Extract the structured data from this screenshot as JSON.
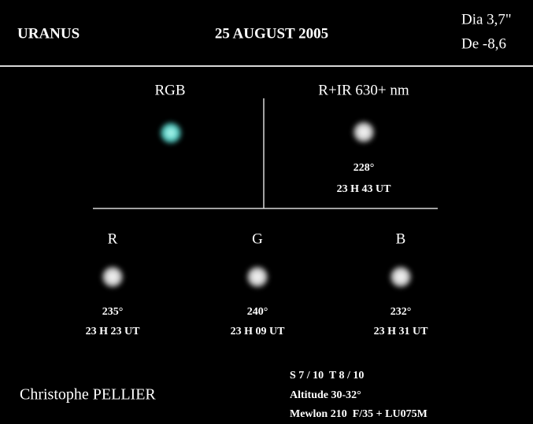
{
  "header": {
    "object": "URANUS",
    "date": "25 AUGUST 2005",
    "diameter": "Dia 3,7\"",
    "declination": "De -8,6"
  },
  "panels": [
    {
      "label": "RGB"
    },
    {
      "label": "R+IR 630+ nm",
      "longitude": "228°",
      "time": "23 H 43 UT"
    },
    {
      "label": "R",
      "longitude": "235°",
      "time": "23 H 23 UT"
    },
    {
      "label": "G",
      "longitude": "240°",
      "time": "23 H 09 UT"
    },
    {
      "label": "B",
      "longitude": "232°",
      "time": "23 H 31 UT"
    }
  ],
  "footer": {
    "observer": "Christophe PELLIER",
    "seeing": "S 7 / 10  T 8 / 10",
    "altitude": "Altitude 30-32°",
    "instrument": "Mewlon 210  F/35 + LU075M"
  }
}
